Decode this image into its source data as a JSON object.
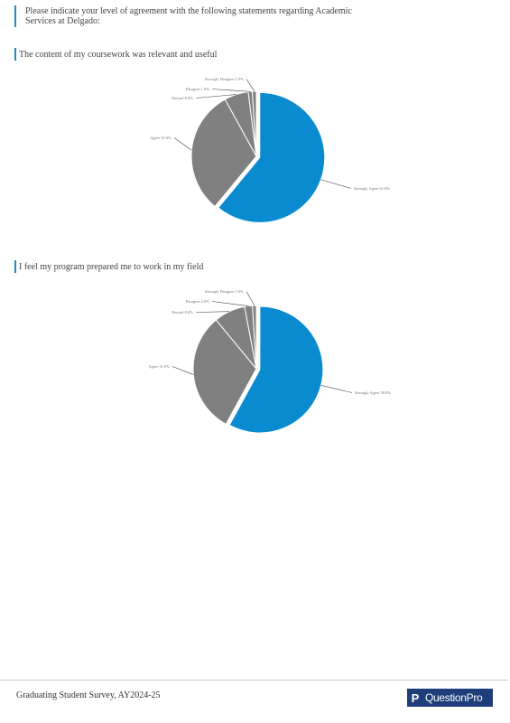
{
  "header": {
    "question": "Please indicate your level of agreement with the following statements regarding Academic Services at Delgado:"
  },
  "footer": {
    "survey_title": "Graduating Student Survey, AY2024-25",
    "logo_text": "QuestionPro",
    "logo_mark": "P"
  },
  "colors": {
    "accent": "#1a8fbf",
    "primary_slice": "#0a8bd0",
    "secondary_slice": "#808080"
  },
  "chart_data": [
    {
      "type": "pie",
      "title": "The content of my coursework was relevant and useful",
      "labels": [
        "Strongly Agree",
        "Agree",
        "Neutral",
        "Disagree",
        "Strongly Disagree"
      ],
      "values": [
        61,
        31,
        6,
        1,
        1
      ],
      "tick_labels": [
        "Strongly Agree 61.0%",
        "Agree 31.0%",
        "Neutral 6.0%",
        "Disagree 1.0%",
        "Strongly Disagree 1.0%"
      ]
    },
    {
      "type": "pie",
      "title": "I feel my program prepared me to work in my field",
      "labels": [
        "Strongly Agree",
        "Agree",
        "Neutral",
        "Disagree",
        "Strongly Disagree"
      ],
      "values": [
        58,
        31,
        8,
        2,
        1
      ],
      "tick_labels": [
        "Strongly Agree 58.0%",
        "Agree 31.0%",
        "Neutral 8.0%",
        "Disagree 2.0%",
        "Strongly Disagree 1.0%"
      ]
    }
  ]
}
